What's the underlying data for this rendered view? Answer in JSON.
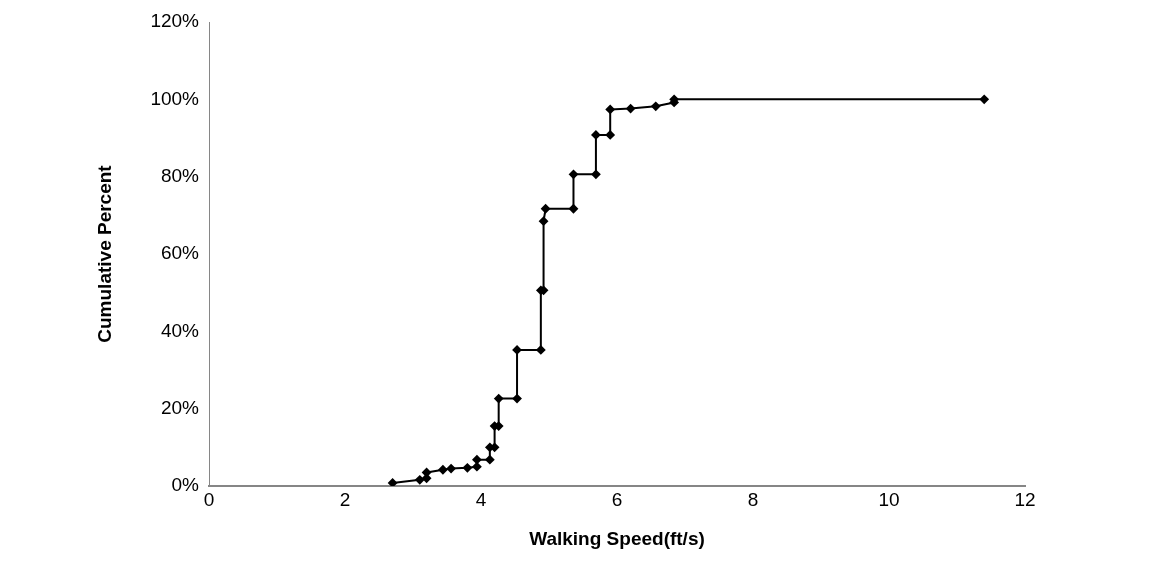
{
  "chart_data": {
    "type": "line",
    "xlabel": "Walking Speed(ft/s)",
    "ylabel": "Cumulative Percent",
    "x": [
      2.7,
      3.1,
      3.2,
      3.2,
      3.44,
      3.56,
      3.8,
      3.94,
      3.94,
      4.13,
      4.13,
      4.2,
      4.2,
      4.26,
      4.26,
      4.53,
      4.53,
      4.88,
      4.88,
      4.92,
      4.92,
      4.95,
      5.36,
      5.36,
      5.69,
      5.69,
      5.9,
      5.9,
      6.2,
      6.57,
      6.84,
      6.84,
      11.4
    ],
    "series": [
      {
        "color": "#000000",
        "values": [
          0.8,
          1.6,
          2.0,
          3.5,
          4.2,
          4.5,
          4.7,
          5.0,
          6.8,
          6.8,
          10.0,
          10.0,
          15.5,
          15.5,
          22.6,
          22.6,
          35.2,
          35.2,
          50.6,
          50.6,
          68.5,
          71.7,
          71.7,
          80.6,
          80.6,
          90.8,
          90.8,
          97.4,
          97.6,
          98.2,
          99.2,
          100,
          100
        ]
      }
    ],
    "xlim": [
      0,
      12
    ],
    "xticks": [
      0,
      2,
      4,
      6,
      8,
      10,
      12
    ],
    "ylim": [
      0,
      120
    ],
    "yticks": [
      {
        "value": 0,
        "label": "0%"
      },
      {
        "value": 20,
        "label": "20%"
      },
      {
        "value": 40,
        "label": "40%"
      },
      {
        "value": 60,
        "label": "60%"
      },
      {
        "value": 80,
        "label": "80%"
      },
      {
        "value": 100,
        "label": "100%"
      },
      {
        "value": 120,
        "label": "120%"
      }
    ],
    "grid": false,
    "legend": false,
    "marker": "diamond",
    "line_style": "solid"
  }
}
